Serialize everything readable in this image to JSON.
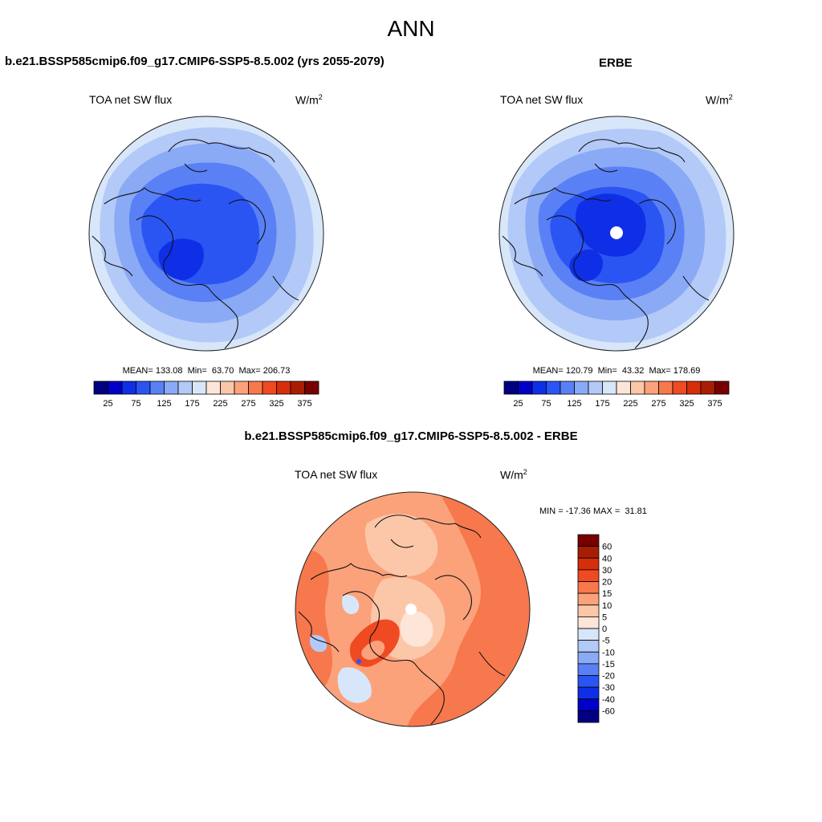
{
  "header": {
    "title": "ANN"
  },
  "panels": [
    {
      "title": "b.e21.BSSP585cmip6.f09_g17.CMIP6-SSP5-8.5.002 (yrs 2055-2079)",
      "variable": "TOA net SW flux",
      "units_base": "W/m",
      "units_exp": "2",
      "stats": "MEAN= 133.08  Min=  63.70  Max= 206.73"
    },
    {
      "title": "ERBE",
      "variable": "TOA net SW flux",
      "units_base": "W/m",
      "units_exp": "2",
      "stats": "MEAN= 120.79  Min=  43.32  Max= 178.69"
    },
    {
      "title": "b.e21.BSSP585cmip6.f09_g17.CMIP6-SSP5-8.5.002 - ERBE",
      "variable": "TOA net SW flux",
      "units_base": "W/m",
      "units_exp": "2",
      "stats": "MIN = -17.36 MAX =  31.81"
    }
  ],
  "colorbar_abs": {
    "colors": [
      "#000080",
      "#0000c8",
      "#0f2fe6",
      "#2a55f2",
      "#5a80f5",
      "#8aaaf5",
      "#b3c9f7",
      "#d8e6fa",
      "#fde5d8",
      "#fcc7a9",
      "#fba27b",
      "#f7784d",
      "#f04a23",
      "#d62d0a",
      "#a81e05",
      "#780000"
    ],
    "labels": [
      "25",
      "75",
      "125",
      "175",
      "225",
      "275",
      "325",
      "375"
    ]
  },
  "colorbar_diff": {
    "colors": [
      "#000080",
      "#0000c8",
      "#0f2fe6",
      "#2a55f2",
      "#5a80f5",
      "#8aaaf5",
      "#b3c9f7",
      "#d8e6fa",
      "#fde5d8",
      "#fcc7a9",
      "#fba27b",
      "#f7784d",
      "#f04a23",
      "#d62d0a",
      "#a81e05",
      "#780000"
    ],
    "labels": [
      "-60",
      "-40",
      "-30",
      "-20",
      "-15",
      "-10",
      "-5",
      "0",
      "5",
      "10",
      "15",
      "20",
      "30",
      "40",
      "60"
    ]
  },
  "maps": {
    "model": {
      "levels": [
        5,
        4,
        3,
        2
      ],
      "colors": [
        "#d8e6fa",
        "#b3c9f7",
        "#8aaaf5",
        "#5a80f5",
        "#2a55f2"
      ]
    },
    "obs": {
      "levels": [
        6,
        5,
        4,
        3,
        2
      ],
      "colors": [
        "#d8e6fa",
        "#b3c9f7",
        "#8aaaf5",
        "#5a80f5",
        "#2a55f2",
        "#0f2fe6"
      ]
    },
    "diff": {
      "colors": [
        "#fcc7a9",
        "#fba27b",
        "#f7784d",
        "#fde5d8",
        "#d8e6fa",
        "#b3c9f7"
      ]
    }
  }
}
